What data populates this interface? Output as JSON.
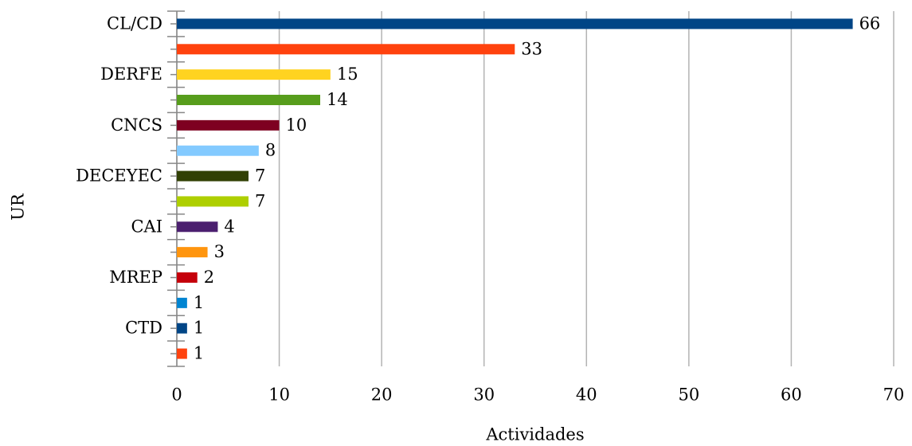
{
  "chart_data": {
    "type": "bar",
    "orientation": "horizontal",
    "x_label": "Actividades",
    "y_label": "UR",
    "categories": [
      "CL/CD",
      null,
      "DERFE",
      null,
      "CNCS",
      null,
      "DECEYEC",
      null,
      "CAI",
      null,
      "MREP",
      null,
      "CTD",
      null
    ],
    "values": [
      66,
      33,
      15,
      14,
      10,
      8,
      7,
      7,
      4,
      3,
      2,
      1,
      1,
      1
    ],
    "colors": [
      "#004586",
      "#ff420e",
      "#ffd320",
      "#579d1c",
      "#7e0021",
      "#83caff",
      "#314004",
      "#aecf00",
      "#4b1f6f",
      "#ff950e",
      "#c5000b",
      "#0084d1",
      "#004586",
      "#ff420e"
    ],
    "xlim": [
      0,
      70
    ],
    "xticks": [
      0,
      10,
      20,
      30,
      40,
      50,
      60,
      70
    ],
    "grid": true
  }
}
